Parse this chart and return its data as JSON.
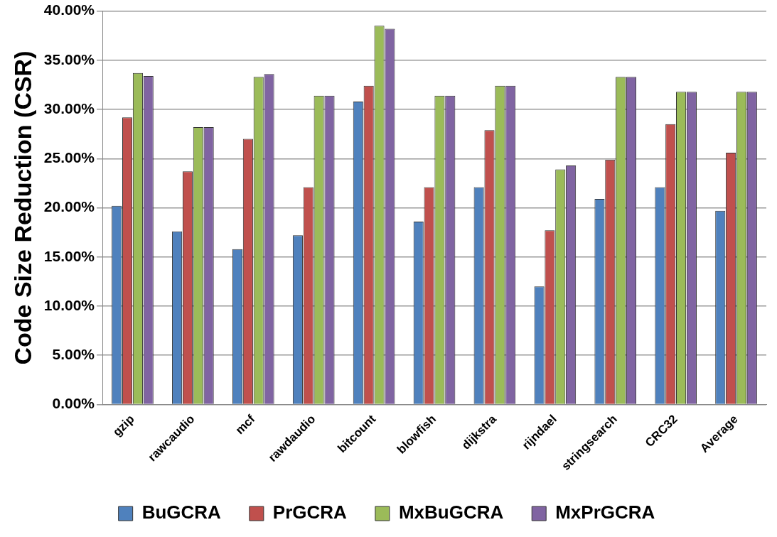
{
  "chart_data": {
    "type": "bar",
    "ylabel": "Code Size Reduction (CSR)",
    "categories": [
      "gzip",
      "rawcaudio",
      "mcf",
      "rawdaudio",
      "bitcount",
      "blowfish",
      "dijkstra",
      "rijndael",
      "stringsearch",
      "CRC32",
      "Average"
    ],
    "series": [
      {
        "name": "BuGCRA",
        "color": "#4f81bd",
        "values": [
          20.2,
          17.6,
          15.8,
          17.2,
          30.8,
          18.6,
          22.1,
          12.0,
          20.9,
          22.1,
          19.7
        ]
      },
      {
        "name": "PrGCRA",
        "color": "#c0504d",
        "values": [
          29.2,
          23.7,
          27.0,
          22.1,
          32.4,
          22.1,
          27.9,
          17.7,
          24.9,
          28.5,
          25.6
        ]
      },
      {
        "name": "MxBuGCRA",
        "color": "#9bbb59",
        "values": [
          33.7,
          28.2,
          33.3,
          31.4,
          38.5,
          31.4,
          32.4,
          23.9,
          33.3,
          31.8,
          31.8
        ]
      },
      {
        "name": "MxPrGCRA",
        "color": "#8064a2",
        "values": [
          33.4,
          28.2,
          33.6,
          31.4,
          38.2,
          31.4,
          32.4,
          24.3,
          33.3,
          31.8,
          31.8
        ]
      }
    ],
    "ylim": [
      0,
      40
    ],
    "yticks": [
      {
        "value": 0,
        "label": "0.00%"
      },
      {
        "value": 5,
        "label": "5.00%"
      },
      {
        "value": 10,
        "label": "10.00%"
      },
      {
        "value": 15,
        "label": "15.00%"
      },
      {
        "value": 20,
        "label": "20.00%"
      },
      {
        "value": 25,
        "label": "25.00%"
      },
      {
        "value": 30,
        "label": "30.00%"
      },
      {
        "value": 35,
        "label": "35.00%"
      },
      {
        "value": 40,
        "label": "40.00%"
      }
    ],
    "grid": "y",
    "legend": "bottom"
  }
}
